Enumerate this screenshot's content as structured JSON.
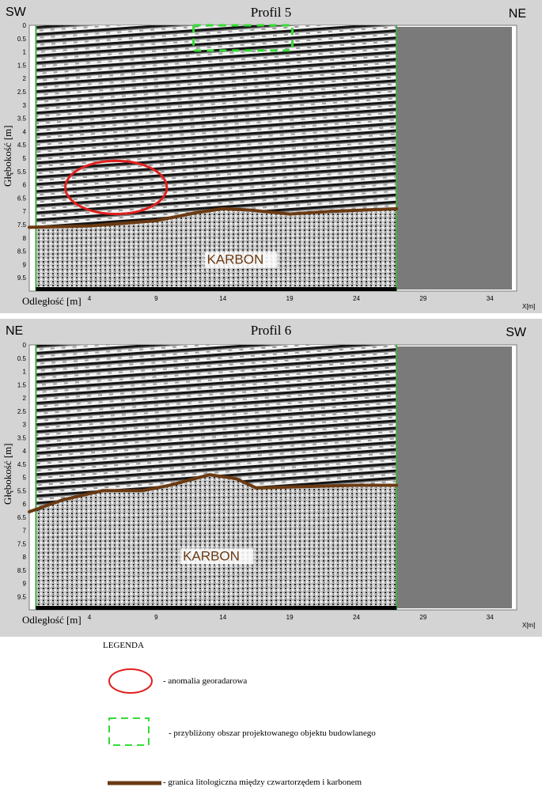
{
  "legend": {
    "title": "LEGENDA",
    "items": [
      {
        "symbol": "red-ellipse",
        "color": "#e0201e",
        "label": "- anomalia georadarowa"
      },
      {
        "symbol": "green-dashed-rect",
        "color": "#33dd33",
        "label": "- przybliżony obszar projektowanego objektu budowlanego"
      },
      {
        "symbol": "brown-line",
        "color": "#6b3a12",
        "label": "- granica litologiczna między czwartorzędem i karbonem"
      }
    ]
  },
  "chart_data": [
    {
      "type": "radargram",
      "title": "Profil 5",
      "left_direction": "SW",
      "right_direction": "NE",
      "ylabel": "Głębokość [m]",
      "xlabel": "Odległość [m]",
      "x_unit_label": "X[m]",
      "xlim": [
        -0.5,
        36
      ],
      "ylim": [
        0,
        10
      ],
      "x_ticks": [
        "4",
        "9",
        "14",
        "19",
        "24",
        "29",
        "34"
      ],
      "y_ticks": [
        "0",
        "0.5",
        "1",
        "1.5",
        "2",
        "2.5",
        "3",
        "3.5",
        "4",
        "4.5",
        "5",
        "5.5",
        "6",
        "6.5",
        "7",
        "7.5",
        "8",
        "8.5",
        "9",
        "9.5"
      ],
      "data_extent_x": [
        0,
        27
      ],
      "zone_label": "KARBON",
      "boundary_color": "#6b3a12",
      "boundary": [
        {
          "x": -0.5,
          "y": 7.6
        },
        {
          "x": 4,
          "y": 7.55
        },
        {
          "x": 9,
          "y": 7.35
        },
        {
          "x": 12,
          "y": 7.05
        },
        {
          "x": 14,
          "y": 6.9
        },
        {
          "x": 16,
          "y": 6.95
        },
        {
          "x": 19,
          "y": 7.1
        },
        {
          "x": 22,
          "y": 7.0
        },
        {
          "x": 27,
          "y": 6.9
        }
      ],
      "anomaly": {
        "cx": 6.0,
        "cy": 6.1,
        "rx": 3.8,
        "ry": 1.0
      },
      "building_area": {
        "x0": 11.8,
        "x1": 19.2,
        "y0": 0.0,
        "y1": 0.95
      }
    },
    {
      "type": "radargram",
      "title": "Profil 6",
      "left_direction": "NE",
      "right_direction": "SW",
      "ylabel": "Głębokość [m]",
      "xlabel": "Odległość [m]",
      "x_unit_label": "X[m]",
      "xlim": [
        -0.5,
        36
      ],
      "ylim": [
        0,
        10
      ],
      "x_ticks": [
        "4",
        "9",
        "14",
        "19",
        "24",
        "29",
        "34"
      ],
      "y_ticks": [
        "0",
        "0.5",
        "1",
        "1.5",
        "2",
        "2.5",
        "3",
        "3.5",
        "4",
        "4.5",
        "5",
        "5.5",
        "6",
        "6.5",
        "7",
        "7.5",
        "8",
        "8.5",
        "9",
        "9.5"
      ],
      "data_extent_x": [
        0,
        27
      ],
      "zone_label": "KARBON",
      "boundary_color": "#6b3a12",
      "boundary": [
        {
          "x": -0.5,
          "y": 6.3
        },
        {
          "x": 2,
          "y": 5.85
        },
        {
          "x": 5,
          "y": 5.5
        },
        {
          "x": 8,
          "y": 5.5
        },
        {
          "x": 10,
          "y": 5.3
        },
        {
          "x": 13,
          "y": 4.9
        },
        {
          "x": 15,
          "y": 5.05
        },
        {
          "x": 16.5,
          "y": 5.4
        },
        {
          "x": 20,
          "y": 5.35
        },
        {
          "x": 24,
          "y": 5.3
        },
        {
          "x": 27,
          "y": 5.3
        }
      ]
    }
  ]
}
